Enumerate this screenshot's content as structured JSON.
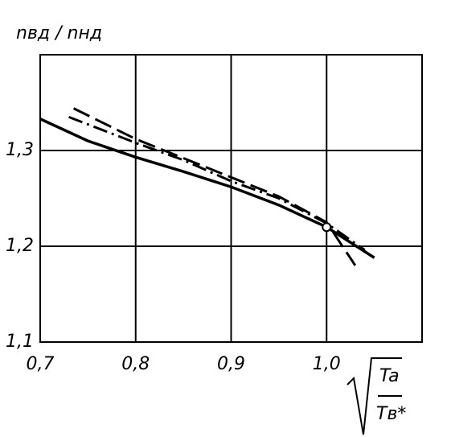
{
  "chart_data": {
    "type": "line",
    "y_label": "nвд / nнд",
    "x_label_numerator": "Ta",
    "x_label_denominator": "Tв*",
    "xlim": [
      0.7,
      1.1
    ],
    "ylim": [
      1.1,
      1.4
    ],
    "xticks": [
      {
        "value": 0.7,
        "label": "0,7"
      },
      {
        "value": 0.8,
        "label": "0,8"
      },
      {
        "value": 0.9,
        "label": "0,9"
      },
      {
        "value": 1.0,
        "label": "1,0"
      }
    ],
    "yticks": [
      {
        "value": 1.1,
        "label": "1,1"
      },
      {
        "value": 1.2,
        "label": "1,2"
      },
      {
        "value": 1.3,
        "label": "1,3"
      }
    ],
    "grid": true,
    "series": [
      {
        "style": "solid",
        "color": "#000000",
        "x": [
          0.7,
          0.75,
          0.8,
          0.85,
          0.9,
          0.95,
          1.0,
          1.05
        ],
        "values": [
          1.333,
          1.31,
          1.293,
          1.278,
          1.262,
          1.243,
          1.22,
          1.188
        ]
      },
      {
        "style": "dashed",
        "color": "#000000",
        "x": [
          0.735,
          0.8,
          0.85,
          0.9,
          0.95,
          1.0,
          1.03
        ],
        "values": [
          1.344,
          1.312,
          1.292,
          1.272,
          1.252,
          1.225,
          1.18
        ]
      },
      {
        "style": "dashdot",
        "color": "#000000",
        "x": [
          0.73,
          0.8,
          0.85,
          0.9,
          0.95,
          1.0,
          1.04
        ],
        "values": [
          1.335,
          1.308,
          1.29,
          1.268,
          1.25,
          1.224,
          1.196
        ]
      }
    ],
    "point": {
      "x": 1.0,
      "y": 1.22
    }
  }
}
